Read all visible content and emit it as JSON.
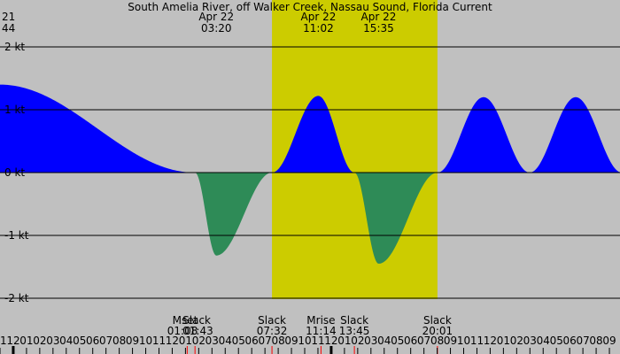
{
  "chart_data": {
    "type": "area",
    "title": "South Amelia River, off Walker Creek, Nassau Sound, Florida Current",
    "unit": "kt",
    "ylim": [
      -2,
      2
    ],
    "y_ticks": [
      {
        "value": 2,
        "label": "2 kt"
      },
      {
        "value": 1,
        "label": "1 kt"
      },
      {
        "value": 0,
        "label": "0 kt"
      },
      {
        "value": -1,
        "label": "-1 kt"
      },
      {
        "value": -2,
        "label": "-2 kt"
      }
    ],
    "xlim_hours": [
      -13.0,
      33.8
    ],
    "hour_ticks": [
      {
        "h": -13,
        "label": "11"
      },
      {
        "h": -12,
        "label": "12"
      },
      {
        "h": -11,
        "label": "01"
      },
      {
        "h": -10,
        "label": "02"
      },
      {
        "h": -9,
        "label": "03"
      },
      {
        "h": -8,
        "label": "04"
      },
      {
        "h": -7,
        "label": "05"
      },
      {
        "h": -6,
        "label": "06"
      },
      {
        "h": -5,
        "label": "07"
      },
      {
        "h": -4,
        "label": "08"
      },
      {
        "h": -3,
        "label": "09"
      },
      {
        "h": -2,
        "label": "10"
      },
      {
        "h": -1,
        "label": "11"
      },
      {
        "h": 0,
        "label": "12"
      },
      {
        "h": 1,
        "label": "01"
      },
      {
        "h": 2,
        "label": "02"
      },
      {
        "h": 3,
        "label": "03"
      },
      {
        "h": 4,
        "label": "04"
      },
      {
        "h": 5,
        "label": "05"
      },
      {
        "h": 6,
        "label": "06"
      },
      {
        "h": 7,
        "label": "07"
      },
      {
        "h": 8,
        "label": "08"
      },
      {
        "h": 9,
        "label": "09"
      },
      {
        "h": 10,
        "label": "10"
      },
      {
        "h": 11,
        "label": "11"
      },
      {
        "h": 12,
        "label": "12"
      },
      {
        "h": 13,
        "label": "01"
      },
      {
        "h": 14,
        "label": "02"
      },
      {
        "h": 15,
        "label": "03"
      },
      {
        "h": 16,
        "label": "04"
      },
      {
        "h": 17,
        "label": "05"
      },
      {
        "h": 18,
        "label": "06"
      },
      {
        "h": 19,
        "label": "07"
      },
      {
        "h": 20,
        "label": "08"
      },
      {
        "h": 21,
        "label": "09"
      },
      {
        "h": 22,
        "label": "10"
      },
      {
        "h": 23,
        "label": "11"
      },
      {
        "h": 24,
        "label": "12"
      },
      {
        "h": 25,
        "label": "01"
      },
      {
        "h": 26,
        "label": "02"
      },
      {
        "h": 27,
        "label": "03"
      },
      {
        "h": 28,
        "label": "04"
      },
      {
        "h": 29,
        "label": "05"
      },
      {
        "h": 30,
        "label": "06"
      },
      {
        "h": 31,
        "label": "07"
      },
      {
        "h": 32,
        "label": "08"
      },
      {
        "h": 33,
        "label": "09"
      }
    ],
    "daylight_hours": [
      7.53,
      20.02
    ],
    "current_points": [
      {
        "h": -13.0,
        "v": 1.4
      },
      {
        "h": 1.72,
        "v": 0.0
      },
      {
        "h": 3.33,
        "v": -1.32
      },
      {
        "h": 7.53,
        "v": 0.0
      },
      {
        "h": 11.03,
        "v": 1.22
      },
      {
        "h": 13.75,
        "v": 0.0
      },
      {
        "h": 15.58,
        "v": -1.45
      },
      {
        "h": 20.02,
        "v": 0.0
      },
      {
        "h": 23.5,
        "v": 1.2
      }
    ],
    "flood_color": "#0000ff",
    "ebb_color": "#2e8b57",
    "day_color": "#cccc00",
    "night_color": "#c0c0c0",
    "event_marker_color": "#ff0000",
    "extreme_labels": [
      {
        "h": -13.0,
        "date": "21",
        "time": "44"
      },
      {
        "h": 3.33,
        "date": "Apr 22",
        "time": "03:20"
      },
      {
        "h": 11.03,
        "date": "Apr 22",
        "time": "11:02"
      },
      {
        "h": 15.58,
        "date": "Apr 22",
        "time": "15:35"
      }
    ],
    "events": [
      {
        "h": 1.13,
        "name": "Mset",
        "time": "01:08",
        "anchor": "end"
      },
      {
        "h": 1.72,
        "name": "Slack",
        "time": "01:43",
        "anchor": "start"
      },
      {
        "h": 7.53,
        "name": "Slack",
        "time": "07:32",
        "anchor": "middle"
      },
      {
        "h": 11.23,
        "name": "Mrise",
        "time": "11:14",
        "anchor": "middle"
      },
      {
        "h": 13.75,
        "name": "Slack",
        "time": "13:45",
        "anchor": "middle"
      },
      {
        "h": 20.02,
        "name": "Slack",
        "time": "20:01",
        "anchor": "middle"
      }
    ]
  }
}
